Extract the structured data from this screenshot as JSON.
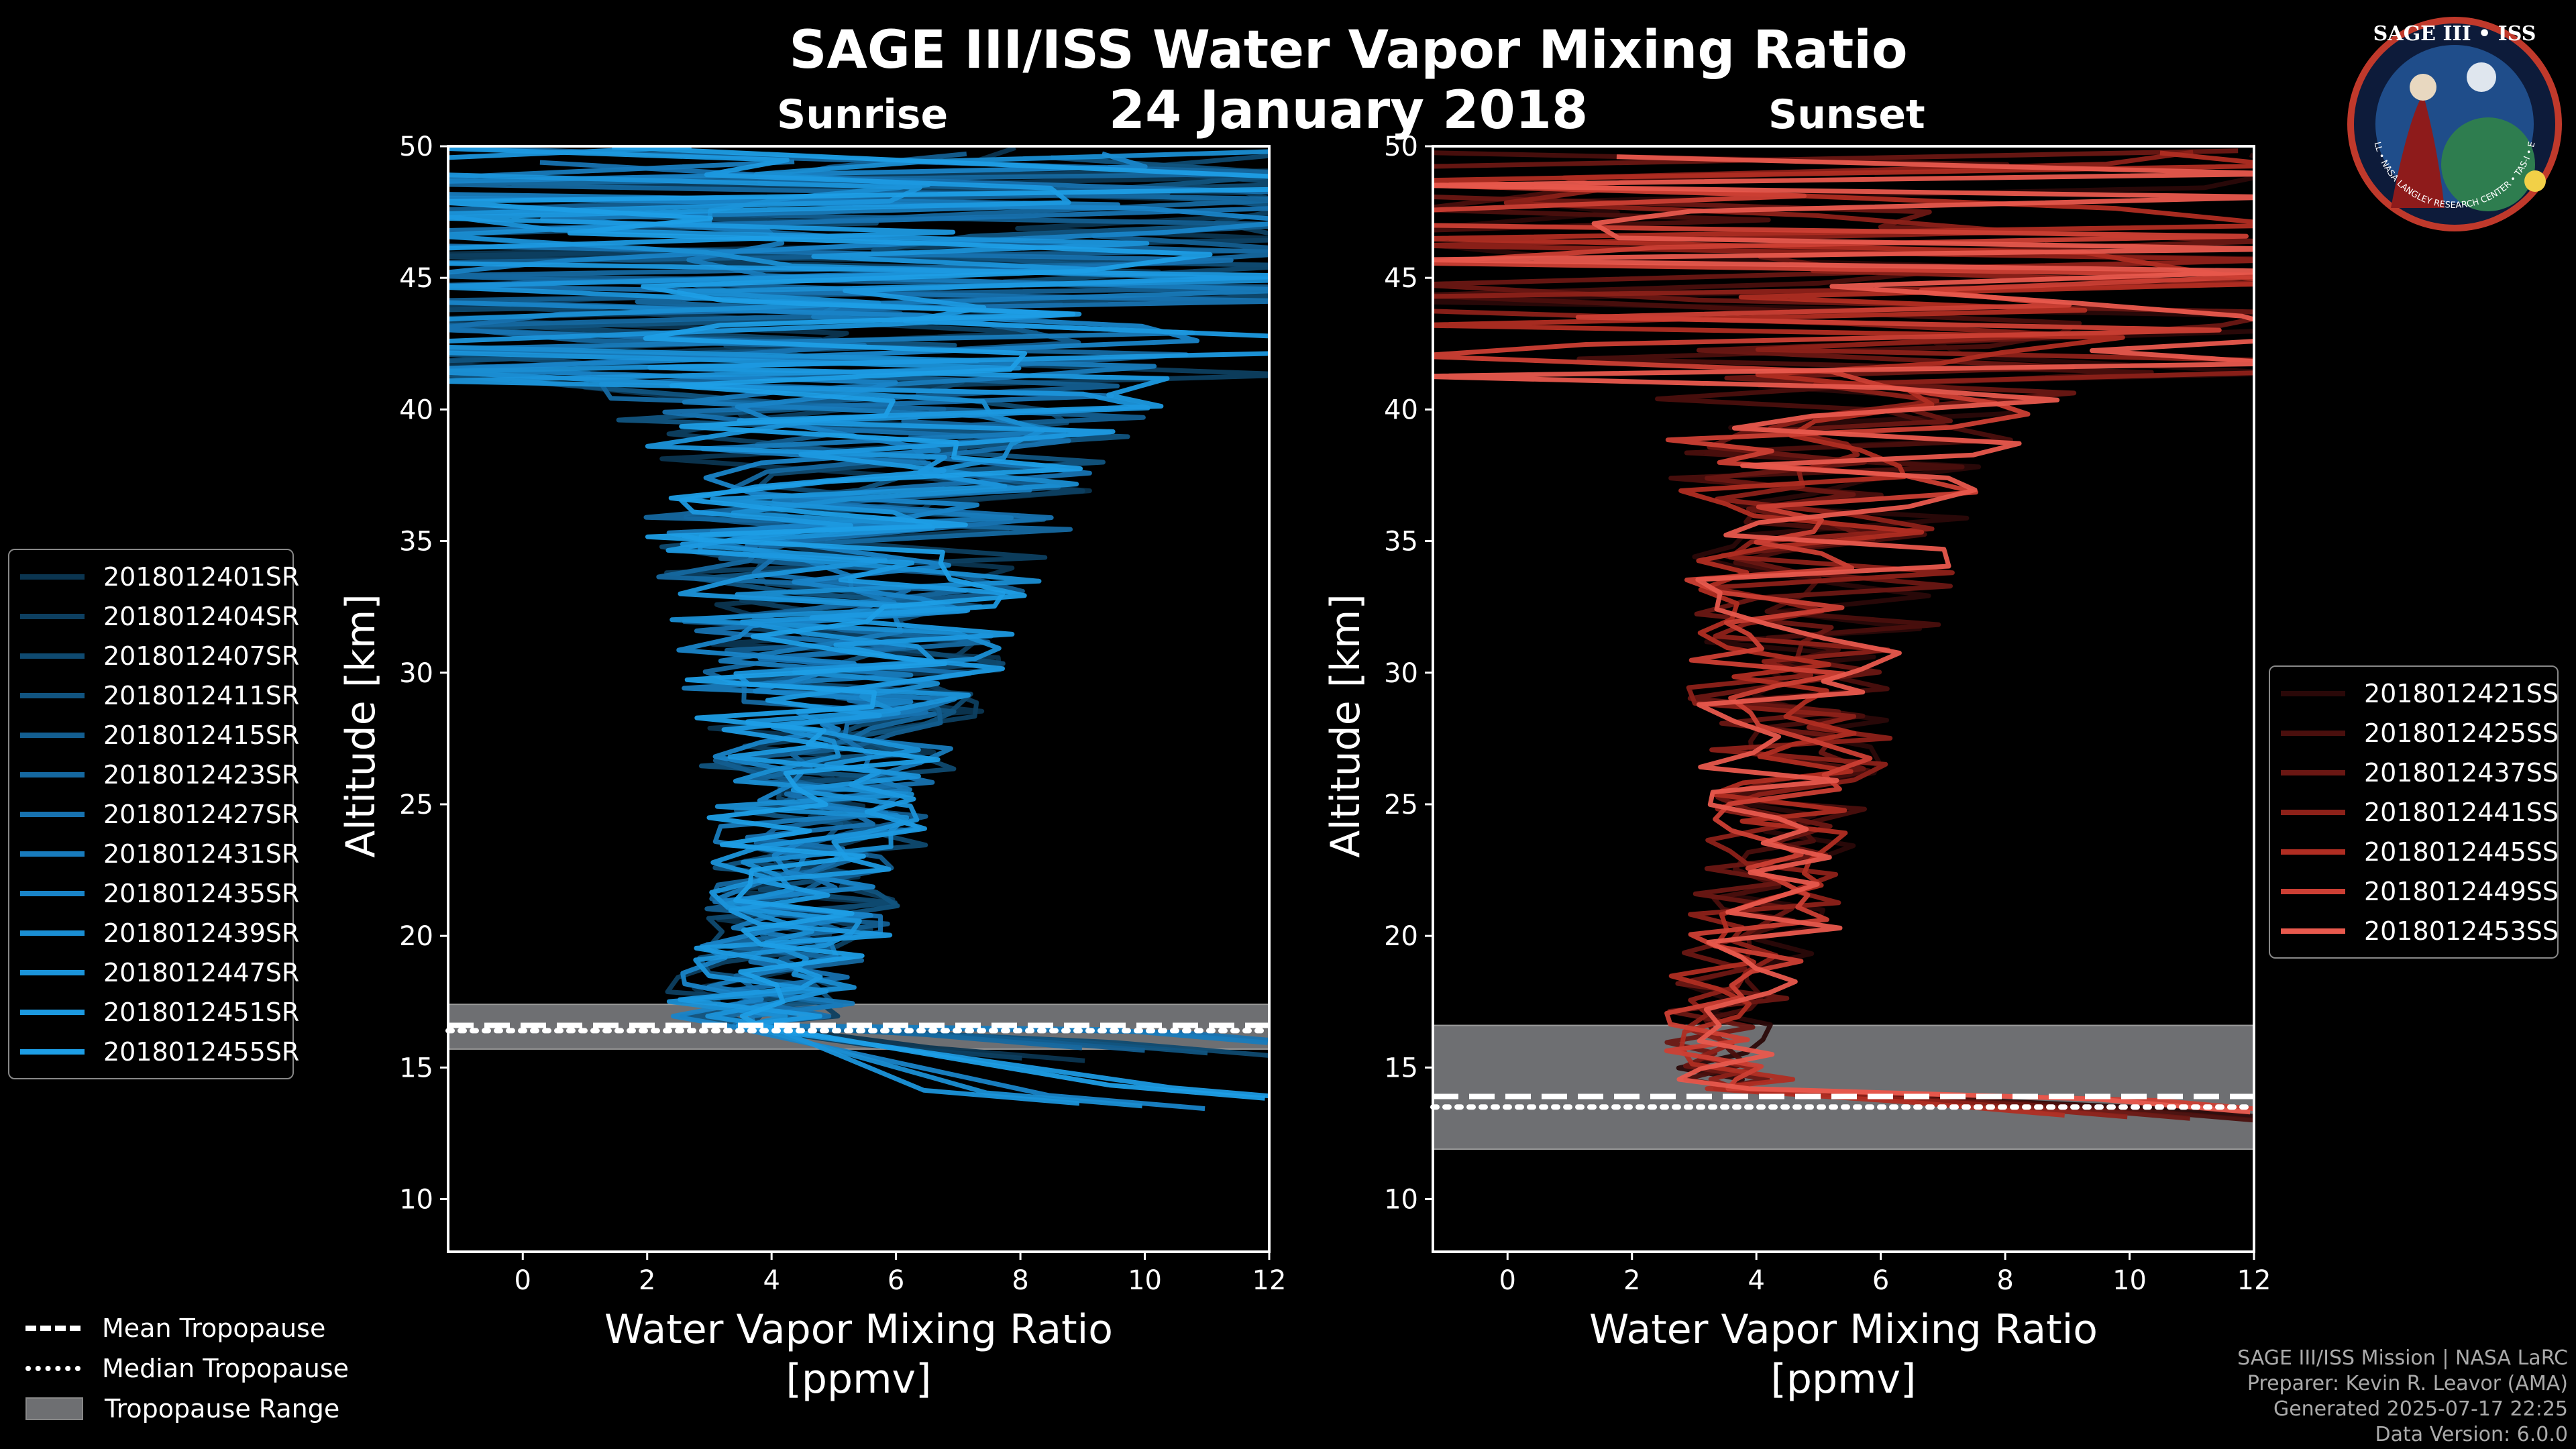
{
  "title": "SAGE III/ISS Water Vapor Mixing Ratio",
  "date": "24 January 2018",
  "panels": {
    "sunrise": {
      "label": "Sunrise"
    },
    "sunset": {
      "label": "Sunset"
    }
  },
  "footer": {
    "line1": "SAGE III/ISS Mission | NASA LaRC",
    "line2": "Preparer: Kevin R. Leavor (AMA)",
    "line3": "Generated 2025-07-17 22:25",
    "line4": "Data Version: 6.0.0"
  },
  "logo": {
    "text_top": "SAGE III • ISS",
    "text_bottom": "BALL • NASA LANGLEY RESEARCH CENTER • TAS-I • ESA"
  },
  "legend_bottom": {
    "mean": "Mean Tropopause",
    "median": "Median Tropopause",
    "range": "Tropopause Range"
  },
  "colors": {
    "sunrise_base": "#1a8ed3",
    "sunset_base": "#e0554a",
    "tropopause_range": "#6e6f72"
  },
  "chart_data": [
    {
      "type": "line",
      "panel": "Sunrise",
      "title": "Sunrise",
      "xlabel": "Water Vapor Mixing Ratio [ppmv]",
      "ylabel": "Altitude [km]",
      "xlim": [
        -1.2,
        12
      ],
      "ylim": [
        8,
        50
      ],
      "xticks": [
        0,
        2,
        4,
        6,
        8,
        10,
        12
      ],
      "yticks": [
        10,
        15,
        20,
        25,
        30,
        35,
        40,
        45,
        50
      ],
      "series_names": [
        "2018012401SR",
        "2018012404SR",
        "2018012407SR",
        "2018012411SR",
        "2018012415SR",
        "2018012423SR",
        "2018012427SR",
        "2018012431SR",
        "2018012435SR",
        "2018012439SR",
        "2018012447SR",
        "2018012451SR",
        "2018012455SR"
      ],
      "series_colors": [
        "#0b3550",
        "#0d3f60",
        "#0f4a70",
        "#115480",
        "#135e90",
        "#1568a0",
        "#1772b0",
        "#187bbc",
        "#1984c8",
        "#1a8ed3",
        "#1b94da",
        "#1c99e0",
        "#1d9ee6"
      ],
      "profile_envelope": [
        [
          16.5,
          3.7,
          1.5
        ],
        [
          18,
          3.8,
          1.6
        ],
        [
          20,
          4.4,
          1.5
        ],
        [
          22,
          4.6,
          1.6
        ],
        [
          24,
          4.8,
          1.8
        ],
        [
          26,
          4.9,
          2.0
        ],
        [
          28,
          5.0,
          2.3
        ],
        [
          30,
          5.1,
          2.6
        ],
        [
          32,
          5.2,
          2.9
        ],
        [
          34,
          5.3,
          3.2
        ],
        [
          36,
          5.4,
          3.6
        ],
        [
          38,
          5.6,
          4.0
        ],
        [
          40,
          5.8,
          4.5
        ],
        [
          42,
          6.0,
          5.5
        ],
        [
          44,
          6.2,
          6.2
        ],
        [
          46,
          6.2,
          6.5
        ],
        [
          48,
          6.2,
          6.5
        ],
        [
          50,
          6.2,
          6.5
        ]
      ],
      "tropopause": {
        "mean_km": 16.6,
        "median_km": 16.4,
        "range_km": [
          15.7,
          17.4
        ]
      }
    },
    {
      "type": "line",
      "panel": "Sunset",
      "title": "Sunset",
      "xlabel": "Water Vapor Mixing Ratio [ppmv]",
      "ylabel": "Altitude [km]",
      "xlim": [
        -1.2,
        12
      ],
      "ylim": [
        8,
        50
      ],
      "xticks": [
        0,
        2,
        4,
        6,
        8,
        10,
        12
      ],
      "yticks": [
        10,
        15,
        20,
        25,
        30,
        35,
        40,
        45,
        50
      ],
      "series_names": [
        "2018012421SS",
        "2018012425SS",
        "2018012437SS",
        "2018012441SS",
        "2018012445SS",
        "2018012449SS",
        "2018012453SS"
      ],
      "series_colors": [
        "#2a0808",
        "#4a0f0d",
        "#6a1713",
        "#8d2119",
        "#b02d22",
        "#cc3f34",
        "#e8594d"
      ],
      "profile_envelope": [
        [
          14,
          3.8,
          1.2
        ],
        [
          16,
          3.4,
          0.9
        ],
        [
          18,
          3.6,
          1.0
        ],
        [
          20,
          4.0,
          1.4
        ],
        [
          22,
          4.2,
          1.3
        ],
        [
          24,
          4.4,
          1.2
        ],
        [
          26,
          4.5,
          1.5
        ],
        [
          28,
          4.6,
          1.7
        ],
        [
          30,
          4.8,
          1.9
        ],
        [
          32,
          4.9,
          2.1
        ],
        [
          34,
          5.0,
          2.2
        ],
        [
          36,
          5.1,
          2.4
        ],
        [
          38,
          5.3,
          2.8
        ],
        [
          40,
          5.6,
          3.4
        ],
        [
          42,
          6.0,
          5.0
        ],
        [
          44,
          6.3,
          6.2
        ],
        [
          46,
          6.4,
          6.5
        ],
        [
          48,
          6.4,
          6.5
        ],
        [
          50,
          6.4,
          6.5
        ]
      ],
      "tropopause": {
        "mean_km": 13.9,
        "median_km": 13.5,
        "range_km": [
          11.9,
          16.6
        ]
      }
    }
  ]
}
